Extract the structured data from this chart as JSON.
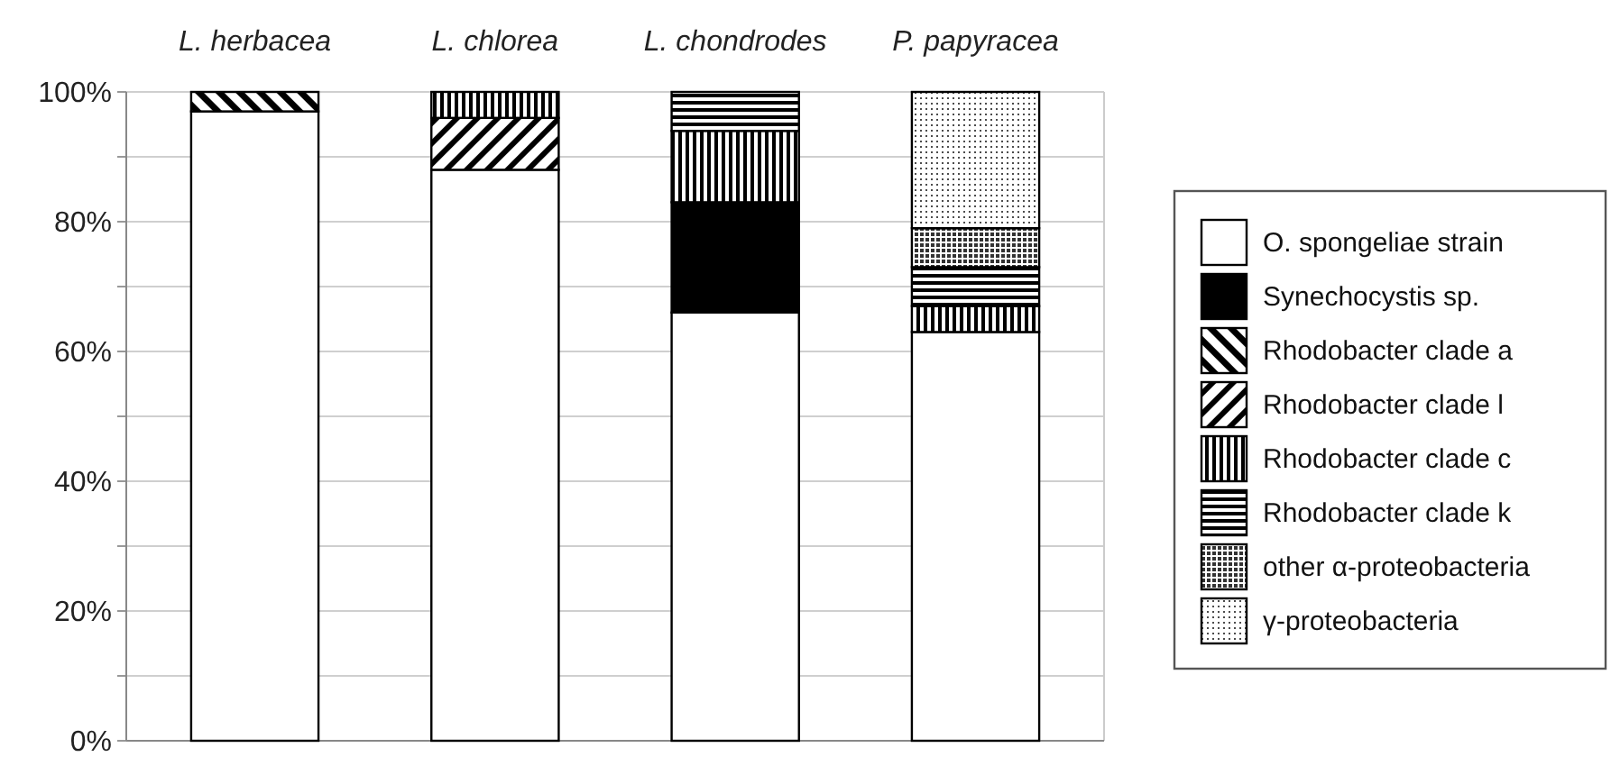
{
  "chart_data": {
    "type": "bar",
    "stacked": true,
    "categories": [
      "L. herbacea",
      "L. chlorea",
      "L. chondrodes",
      "P. papyracea"
    ],
    "series": [
      {
        "name": "O. spongeliae strain",
        "color": "#ffffff",
        "values": [
          97,
          88,
          66,
          63
        ]
      },
      {
        "name": "Synechocystis sp.",
        "color": "#000000",
        "values": [
          0,
          0,
          17,
          0
        ]
      },
      {
        "name": "Rhodobacter clade a",
        "color": "#000000",
        "values": [
          3,
          0,
          0,
          0
        ]
      },
      {
        "name": "Rhodobacter clade l",
        "color": "#000000",
        "values": [
          0,
          8,
          0,
          0
        ]
      },
      {
        "name": "Rhodobacter clade c",
        "color": "#000000",
        "values": [
          0,
          4,
          11,
          4
        ]
      },
      {
        "name": "Rhodobacter clade k",
        "color": "#000000",
        "values": [
          0,
          0,
          6,
          6
        ]
      },
      {
        "name": "other α-proteobacteria",
        "color": "#000000",
        "values": [
          0,
          0,
          0,
          6
        ]
      },
      {
        "name": "γ-proteobacteria",
        "color": "#000000",
        "values": [
          0,
          0,
          0,
          21
        ]
      }
    ],
    "ylim": [
      0,
      100
    ],
    "yticks": [
      {
        "value": 0,
        "label": "0%"
      },
      {
        "value": 10,
        "label": null
      },
      {
        "value": 20,
        "label": "20%"
      },
      {
        "value": 30,
        "label": null
      },
      {
        "value": 40,
        "label": "40%"
      },
      {
        "value": 50,
        "label": null
      },
      {
        "value": 60,
        "label": "60%"
      },
      {
        "value": 70,
        "label": null
      },
      {
        "value": 80,
        "label": "80%"
      },
      {
        "value": 90,
        "label": null
      },
      {
        "value": 100,
        "label": "100%"
      }
    ],
    "grid": "y",
    "legend": "right"
  }
}
